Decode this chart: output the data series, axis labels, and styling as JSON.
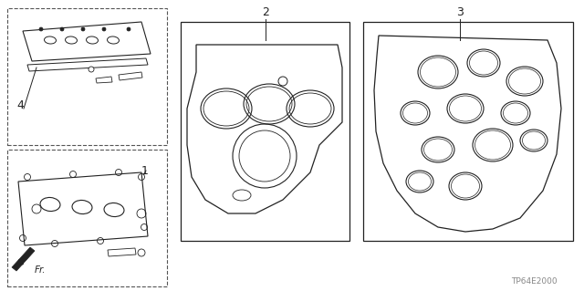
{
  "bg_color": "#ffffff",
  "line_color": "#222222",
  "dashed_color": "#555555",
  "part_label_1": "1",
  "part_label_2": "2",
  "part_label_3": "3",
  "part_label_4": "4",
  "part_code": "TP64E2000",
  "fr_label": "Fr.",
  "fig_width": 6.4,
  "fig_height": 3.19,
  "dpi": 100
}
